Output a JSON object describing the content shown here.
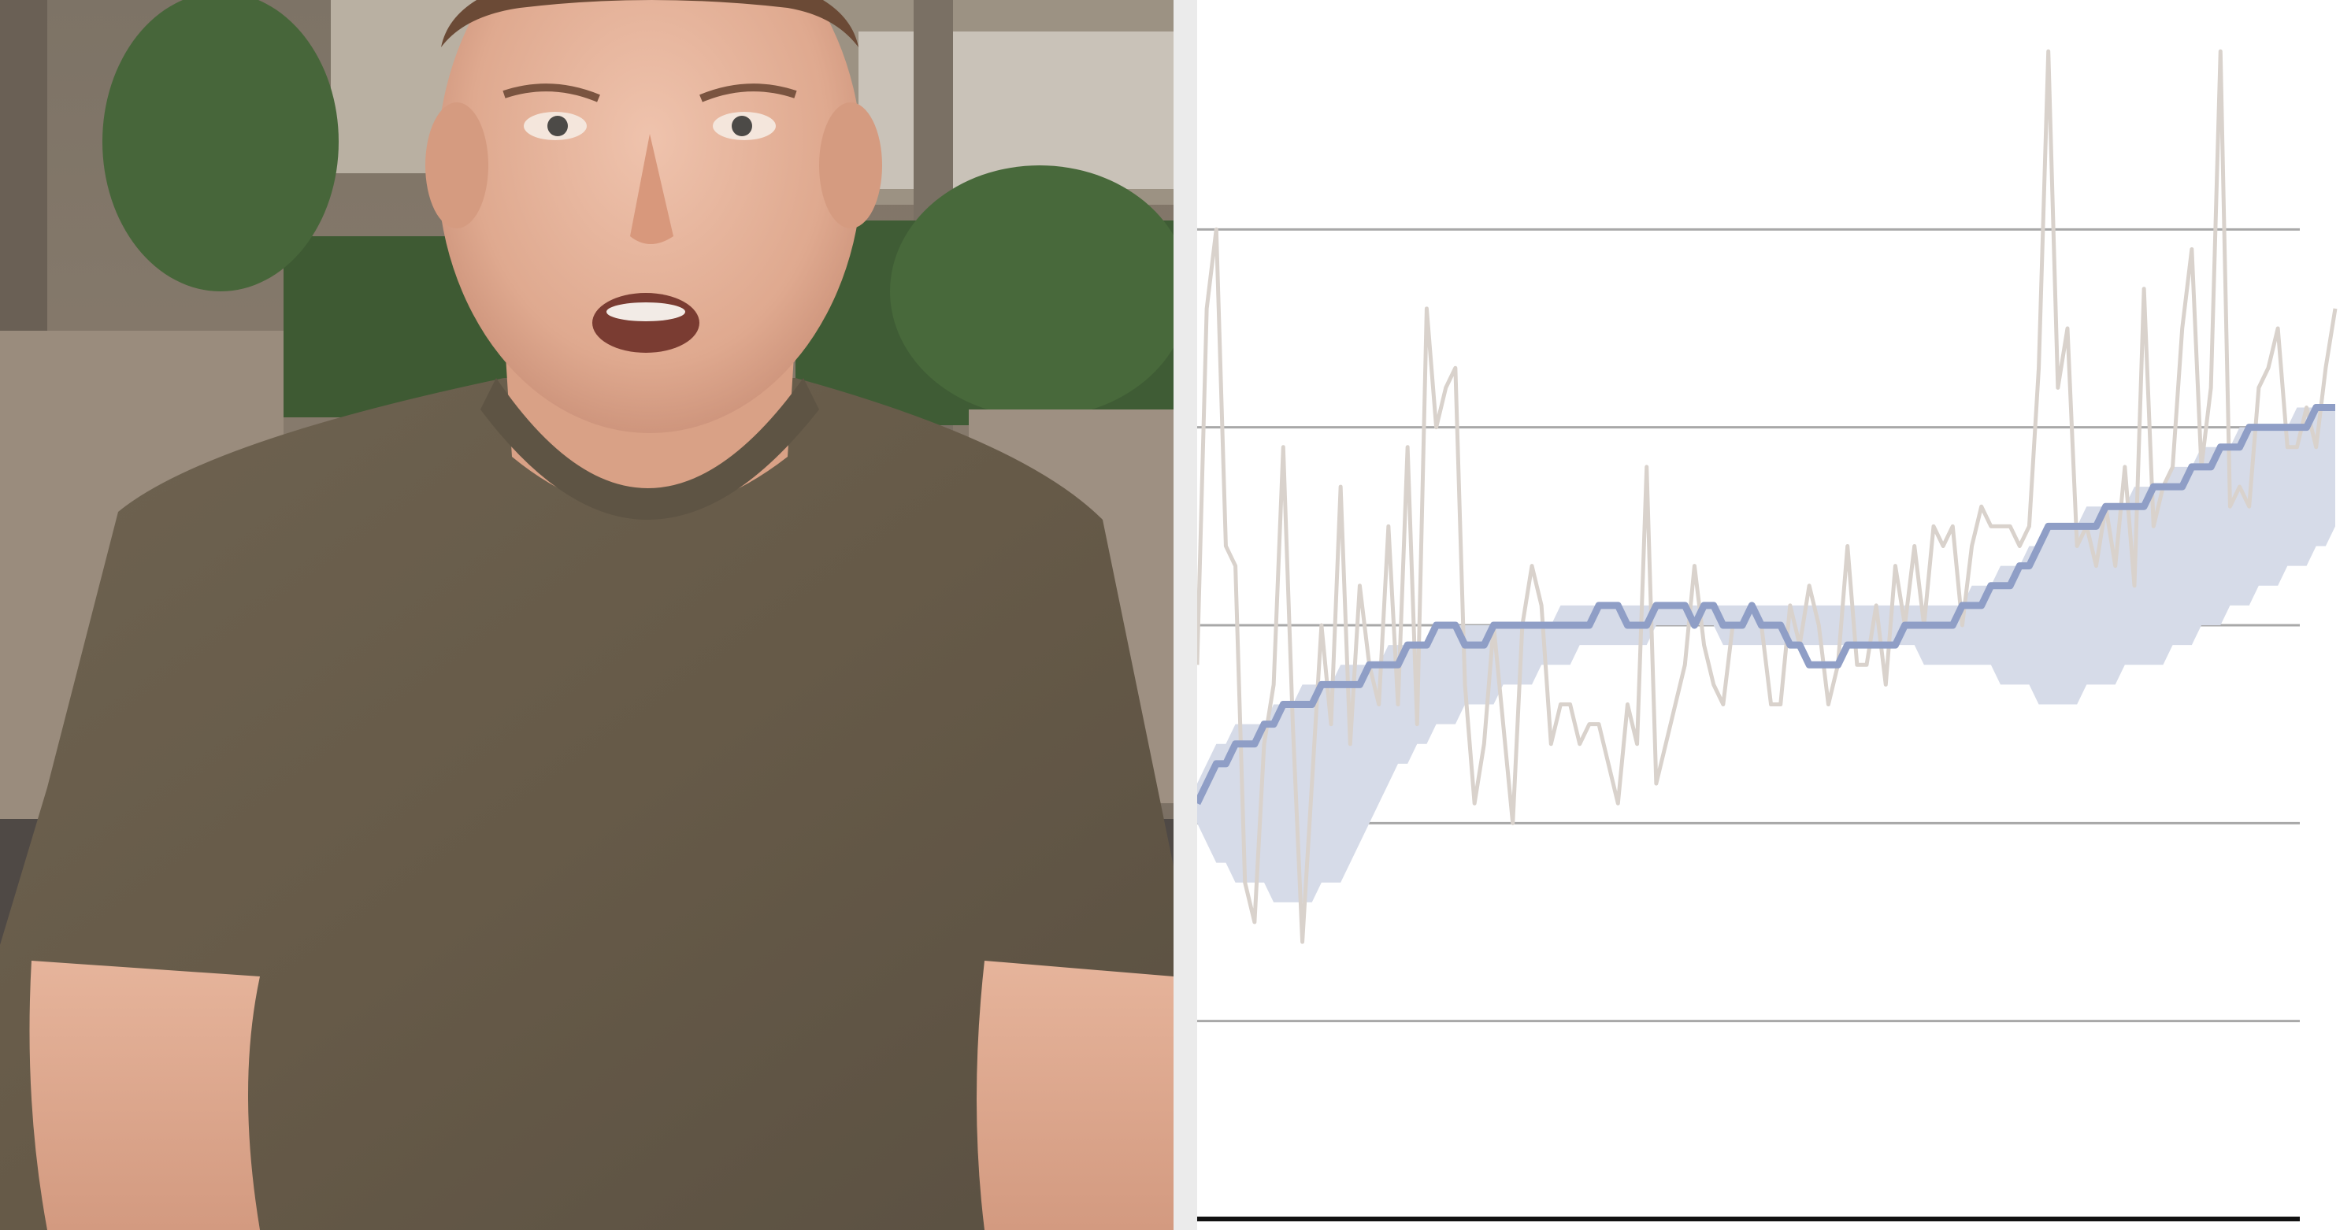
{
  "photo": {
    "description_icon": "person-portrait-icon"
  },
  "chart_data": {
    "type": "line",
    "title": "",
    "xlabel": "",
    "ylabel": "",
    "x_count": 120,
    "ylim": [
      0,
      6
    ],
    "gridlines": [
      1,
      2,
      3,
      4,
      5
    ],
    "grid": true,
    "legend": "none",
    "colors": {
      "raw": "#d9d2cc",
      "average": "#8f9ec6",
      "band": "#d6dbe8",
      "grid": "#a8a8a8",
      "baseline": "#111111"
    },
    "series": [
      {
        "role": "raw",
        "values": [
          2.8,
          4.6,
          5.0,
          3.4,
          3.3,
          1.7,
          1.5,
          2.4,
          2.7,
          3.9,
          2.5,
          1.4,
          2.2,
          3.0,
          2.5,
          3.7,
          2.4,
          3.2,
          2.8,
          2.6,
          3.5,
          2.6,
          3.9,
          2.5,
          4.6,
          4.0,
          4.2,
          4.3,
          2.7,
          2.1,
          2.4,
          3.0,
          2.5,
          2.0,
          3.0,
          3.3,
          3.1,
          2.4,
          2.6,
          2.6,
          2.4,
          2.5,
          2.5,
          2.3,
          2.1,
          2.6,
          2.4,
          3.8,
          2.2,
          2.4,
          2.6,
          2.8,
          3.3,
          2.9,
          2.7,
          2.6,
          3.0,
          3.0,
          3.1,
          3.0,
          2.6,
          2.6,
          3.1,
          2.9,
          3.2,
          3.0,
          2.6,
          2.8,
          3.4,
          2.8,
          2.8,
          3.1,
          2.7,
          3.3,
          3.0,
          3.4,
          3.0,
          3.5,
          3.4,
          3.5,
          3.0,
          3.4,
          3.6,
          3.5,
          3.5,
          3.5,
          3.4,
          3.5,
          4.3,
          5.9,
          4.2,
          4.5,
          3.4,
          3.5,
          3.3,
          3.6,
          3.3,
          3.8,
          3.2,
          4.7,
          3.5,
          3.7,
          3.8,
          4.5,
          4.9,
          3.8,
          4.2,
          5.9,
          3.6,
          3.7,
          3.6,
          4.2,
          4.3,
          4.5,
          3.9,
          3.9,
          4.1,
          3.9,
          4.3,
          4.6
        ]
      },
      {
        "role": "average",
        "values": [
          2.1,
          2.2,
          2.3,
          2.3,
          2.4,
          2.4,
          2.4,
          2.5,
          2.5,
          2.6,
          2.6,
          2.6,
          2.6,
          2.7,
          2.7,
          2.7,
          2.7,
          2.7,
          2.8,
          2.8,
          2.8,
          2.8,
          2.9,
          2.9,
          2.9,
          3.0,
          3.0,
          3.0,
          2.9,
          2.9,
          2.9,
          3.0,
          3.0,
          3.0,
          3.0,
          3.0,
          3.0,
          3.0,
          3.0,
          3.0,
          3.0,
          3.0,
          3.1,
          3.1,
          3.1,
          3.0,
          3.0,
          3.0,
          3.1,
          3.1,
          3.1,
          3.1,
          3.0,
          3.1,
          3.1,
          3.0,
          3.0,
          3.0,
          3.1,
          3.0,
          3.0,
          3.0,
          2.9,
          2.9,
          2.8,
          2.8,
          2.8,
          2.8,
          2.9,
          2.9,
          2.9,
          2.9,
          2.9,
          2.9,
          3.0,
          3.0,
          3.0,
          3.0,
          3.0,
          3.0,
          3.1,
          3.1,
          3.1,
          3.2,
          3.2,
          3.2,
          3.3,
          3.3,
          3.4,
          3.5,
          3.5,
          3.5,
          3.5,
          3.5,
          3.5,
          3.6,
          3.6,
          3.6,
          3.6,
          3.6,
          3.7,
          3.7,
          3.7,
          3.7,
          3.8,
          3.8,
          3.8,
          3.9,
          3.9,
          3.9,
          4.0,
          4.0,
          4.0,
          4.0,
          4.0,
          4.0,
          4.0,
          4.1,
          4.1,
          4.1
        ]
      },
      {
        "role": "band-upper",
        "values": [
          2.2,
          2.3,
          2.4,
          2.4,
          2.5,
          2.5,
          2.5,
          2.5,
          2.6,
          2.6,
          2.6,
          2.7,
          2.7,
          2.7,
          2.7,
          2.8,
          2.8,
          2.8,
          2.8,
          2.8,
          2.9,
          2.9,
          2.9,
          2.9,
          2.9,
          3.0,
          3.0,
          3.0,
          3.0,
          3.0,
          3.0,
          3.0,
          3.0,
          3.0,
          3.0,
          3.0,
          3.0,
          3.0,
          3.1,
          3.1,
          3.1,
          3.1,
          3.1,
          3.1,
          3.1,
          3.1,
          3.1,
          3.1,
          3.1,
          3.1,
          3.1,
          3.1,
          3.1,
          3.1,
          3.1,
          3.1,
          3.1,
          3.1,
          3.1,
          3.1,
          3.1,
          3.1,
          3.1,
          3.1,
          3.1,
          3.1,
          3.1,
          3.1,
          3.1,
          3.1,
          3.1,
          3.1,
          3.1,
          3.1,
          3.1,
          3.1,
          3.1,
          3.1,
          3.1,
          3.1,
          3.1,
          3.2,
          3.2,
          3.2,
          3.3,
          3.3,
          3.3,
          3.4,
          3.4,
          3.5,
          3.5,
          3.5,
          3.5,
          3.6,
          3.6,
          3.6,
          3.6,
          3.6,
          3.7,
          3.7,
          3.7,
          3.7,
          3.8,
          3.8,
          3.8,
          3.9,
          3.9,
          3.9,
          3.9,
          4.0,
          4.0,
          4.0,
          4.0,
          4.0,
          4.0,
          4.1,
          4.1,
          4.1,
          4.1,
          4.1
        ]
      },
      {
        "role": "band-lower",
        "values": [
          2.0,
          1.9,
          1.8,
          1.8,
          1.7,
          1.7,
          1.7,
          1.7,
          1.6,
          1.6,
          1.6,
          1.6,
          1.6,
          1.7,
          1.7,
          1.7,
          1.8,
          1.9,
          2.0,
          2.1,
          2.2,
          2.3,
          2.3,
          2.4,
          2.4,
          2.5,
          2.5,
          2.5,
          2.6,
          2.6,
          2.6,
          2.6,
          2.7,
          2.7,
          2.7,
          2.7,
          2.8,
          2.8,
          2.8,
          2.8,
          2.9,
          2.9,
          2.9,
          2.9,
          2.9,
          2.9,
          2.9,
          2.9,
          3.0,
          3.0,
          3.0,
          3.0,
          3.0,
          3.0,
          3.0,
          2.9,
          2.9,
          2.9,
          2.9,
          2.9,
          2.9,
          2.9,
          2.9,
          2.9,
          2.9,
          2.9,
          2.9,
          2.9,
          2.9,
          2.9,
          2.9,
          2.9,
          2.9,
          2.9,
          2.9,
          2.9,
          2.8,
          2.8,
          2.8,
          2.8,
          2.8,
          2.8,
          2.8,
          2.8,
          2.7,
          2.7,
          2.7,
          2.7,
          2.6,
          2.6,
          2.6,
          2.6,
          2.6,
          2.7,
          2.7,
          2.7,
          2.7,
          2.8,
          2.8,
          2.8,
          2.8,
          2.8,
          2.9,
          2.9,
          2.9,
          3.0,
          3.0,
          3.0,
          3.1,
          3.1,
          3.1,
          3.2,
          3.2,
          3.2,
          3.3,
          3.3,
          3.3,
          3.4,
          3.4,
          3.5
        ]
      }
    ]
  }
}
